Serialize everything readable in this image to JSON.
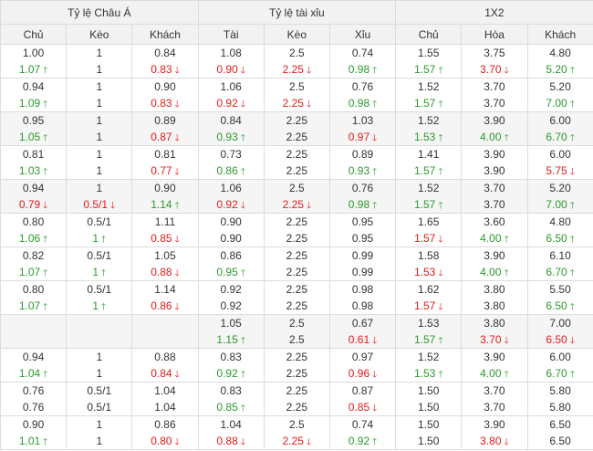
{
  "headers": {
    "groups": [
      "Tỷ lệ Châu Á",
      "Tỷ lệ tài xỉu",
      "1X2"
    ],
    "columns": [
      "Chủ",
      "Kèo",
      "Khách",
      "Tài",
      "Kèo",
      "Xỉu",
      "Chủ",
      "Hòa",
      "Khách"
    ]
  },
  "rows": [
    {
      "bg": "w",
      "c": [
        [
          "1.00",
          "",
          "1.07",
          "g"
        ],
        [
          "1",
          "",
          "1",
          ""
        ],
        [
          "0.84",
          "",
          "0.83",
          "r"
        ],
        [
          "1.08",
          "",
          "0.90",
          "r"
        ],
        [
          "2.5",
          "",
          "2.25",
          "r"
        ],
        [
          "0.74",
          "",
          "0.98",
          "g"
        ],
        [
          "1.55",
          "",
          "1.57",
          "g"
        ],
        [
          "3.75",
          "",
          "3.70",
          "r"
        ],
        [
          "4.80",
          "",
          "5.20",
          "g"
        ]
      ]
    },
    {
      "bg": "w",
      "c": [
        [
          "0.94",
          "",
          "1.09",
          "g"
        ],
        [
          "1",
          "",
          "1",
          ""
        ],
        [
          "0.90",
          "",
          "0.83",
          "r"
        ],
        [
          "1.06",
          "",
          "0.92",
          "r"
        ],
        [
          "2.5",
          "",
          "2.25",
          "r"
        ],
        [
          "0.76",
          "",
          "0.98",
          "g"
        ],
        [
          "1.52",
          "",
          "1.57",
          "g"
        ],
        [
          "3.70",
          "",
          "3.70",
          ""
        ],
        [
          "5.20",
          "",
          "7.00",
          "g"
        ]
      ]
    },
    {
      "bg": "g",
      "c": [
        [
          "0.95",
          "",
          "1.05",
          "g"
        ],
        [
          "1",
          "",
          "1",
          ""
        ],
        [
          "0.89",
          "",
          "0.87",
          "r"
        ],
        [
          "0.84",
          "",
          "0.93",
          "g"
        ],
        [
          "2.25",
          "",
          "2.25",
          ""
        ],
        [
          "1.03",
          "",
          "0.97",
          "r"
        ],
        [
          "1.52",
          "",
          "1.53",
          "g"
        ],
        [
          "3.90",
          "",
          "4.00",
          "g"
        ],
        [
          "6.00",
          "",
          "6.70",
          "g"
        ]
      ]
    },
    {
      "bg": "w",
      "c": [
        [
          "0.81",
          "",
          "1.03",
          "g"
        ],
        [
          "1",
          "",
          "1",
          ""
        ],
        [
          "0.81",
          "",
          "0.77",
          "r"
        ],
        [
          "0.73",
          "",
          "0.86",
          "g"
        ],
        [
          "2.25",
          "",
          "2.25",
          ""
        ],
        [
          "0.89",
          "",
          "0.93",
          "g"
        ],
        [
          "1.41",
          "",
          "1.57",
          "g"
        ],
        [
          "3.90",
          "",
          "3.90",
          ""
        ],
        [
          "6.00",
          "",
          "5.75",
          "r"
        ]
      ]
    },
    {
      "bg": "g",
      "c": [
        [
          "0.94",
          "",
          "0.79",
          "r"
        ],
        [
          "1",
          "",
          "0.5/1",
          "r"
        ],
        [
          "0.90",
          "",
          "1.14",
          "g"
        ],
        [
          "1.06",
          "",
          "0.92",
          "r"
        ],
        [
          "2.5",
          "",
          "2.25",
          "r"
        ],
        [
          "0.76",
          "",
          "0.98",
          "g"
        ],
        [
          "1.52",
          "",
          "1.57",
          "g"
        ],
        [
          "3.70",
          "",
          "3.70",
          ""
        ],
        [
          "5.20",
          "",
          "7.00",
          "g"
        ]
      ]
    },
    {
      "bg": "w",
      "c": [
        [
          "0.80",
          "",
          "1.06",
          "g"
        ],
        [
          "0.5/1",
          "",
          "1",
          "g"
        ],
        [
          "1.11",
          "",
          "0.85",
          "r"
        ],
        [
          "0.90",
          "",
          "0.90",
          ""
        ],
        [
          "2.25",
          "",
          "2.25",
          ""
        ],
        [
          "0.95",
          "",
          "0.95",
          ""
        ],
        [
          "1.65",
          "",
          "1.57",
          "r"
        ],
        [
          "3.60",
          "",
          "4.00",
          "g"
        ],
        [
          "4.80",
          "",
          "6.50",
          "g"
        ]
      ]
    },
    {
      "bg": "w",
      "c": [
        [
          "0.82",
          "",
          "1.07",
          "g"
        ],
        [
          "0.5/1",
          "",
          "1",
          "g"
        ],
        [
          "1.05",
          "",
          "0.88",
          "r"
        ],
        [
          "0.86",
          "",
          "0.95",
          "g"
        ],
        [
          "2.25",
          "",
          "2.25",
          ""
        ],
        [
          "0.99",
          "",
          "0.99",
          ""
        ],
        [
          "1.58",
          "",
          "1.53",
          "r"
        ],
        [
          "3.90",
          "",
          "4.00",
          "g"
        ],
        [
          "6.10",
          "",
          "6.70",
          "g"
        ]
      ]
    },
    {
      "bg": "w",
      "c": [
        [
          "0.80",
          "",
          "1.07",
          "g"
        ],
        [
          "0.5/1",
          "",
          "1",
          "g"
        ],
        [
          "1.14",
          "",
          "0.86",
          "r"
        ],
        [
          "0.92",
          "",
          "0.92",
          ""
        ],
        [
          "2.25",
          "",
          "2.25",
          ""
        ],
        [
          "0.98",
          "",
          "0.98",
          ""
        ],
        [
          "1.62",
          "",
          "1.57",
          "r"
        ],
        [
          "3.80",
          "",
          "3.80",
          ""
        ],
        [
          "5.50",
          "",
          "6.50",
          "g"
        ]
      ]
    },
    {
      "bg": "g",
      "c": [
        [
          "",
          "",
          "",
          ""
        ],
        [
          "",
          "",
          "",
          ""
        ],
        [
          "",
          "",
          "",
          ""
        ],
        [
          "1.05",
          "",
          "1.15",
          "g"
        ],
        [
          "2.5",
          "",
          "2.5",
          ""
        ],
        [
          "0.67",
          "",
          "0.61",
          "r"
        ],
        [
          "1.53",
          "",
          "1.57",
          "g"
        ],
        [
          "3.80",
          "",
          "3.70",
          "r"
        ],
        [
          "7.00",
          "",
          "6.50",
          "r"
        ]
      ]
    },
    {
      "bg": "w",
      "c": [
        [
          "0.94",
          "",
          "1.04",
          "g"
        ],
        [
          "1",
          "",
          "1",
          ""
        ],
        [
          "0.88",
          "",
          "0.84",
          "r"
        ],
        [
          "0.83",
          "",
          "0.92",
          "g"
        ],
        [
          "2.25",
          "",
          "2.25",
          ""
        ],
        [
          "0.97",
          "",
          "0.96",
          "r"
        ],
        [
          "1.52",
          "",
          "1.53",
          "g"
        ],
        [
          "3.90",
          "",
          "4.00",
          "g"
        ],
        [
          "6.00",
          "",
          "6.70",
          "g"
        ]
      ]
    },
    {
      "bg": "w",
      "c": [
        [
          "0.76",
          "",
          "0.76",
          ""
        ],
        [
          "0.5/1",
          "",
          "0.5/1",
          ""
        ],
        [
          "1.04",
          "",
          "1.04",
          ""
        ],
        [
          "0.83",
          "",
          "0.85",
          "g"
        ],
        [
          "2.25",
          "",
          "2.25",
          ""
        ],
        [
          "0.87",
          "",
          "0.85",
          "r"
        ],
        [
          "1.50",
          "",
          "1.50",
          ""
        ],
        [
          "3.70",
          "",
          "3.70",
          ""
        ],
        [
          "5.80",
          "",
          "5.80",
          ""
        ]
      ]
    },
    {
      "bg": "w",
      "c": [
        [
          "0.90",
          "",
          "1.01",
          "g"
        ],
        [
          "1",
          "",
          "1",
          ""
        ],
        [
          "0.86",
          "",
          "0.80",
          "r"
        ],
        [
          "1.04",
          "",
          "0.88",
          "r"
        ],
        [
          "2.5",
          "",
          "2.25",
          "r"
        ],
        [
          "0.74",
          "",
          "0.92",
          "g"
        ],
        [
          "1.50",
          "",
          "1.50",
          ""
        ],
        [
          "3.90",
          "",
          "3.80",
          "r"
        ],
        [
          "6.50",
          "",
          "6.50",
          ""
        ]
      ]
    }
  ],
  "arrows": {
    "up": "🡑",
    "down": "🡓"
  },
  "colors": {
    "up": "#2b9a2b",
    "down": "#e21b1b",
    "header_bg": "#f2f2f2",
    "border": "#dcdcdc"
  }
}
